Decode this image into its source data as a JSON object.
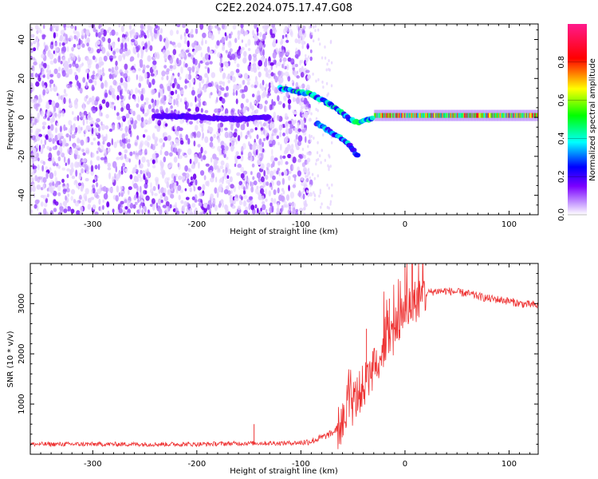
{
  "title": "C2E2.2024.075.17.47.G08",
  "chart_data": [
    {
      "type": "heatmap",
      "xlabel": "Height of straight line (km)",
      "ylabel": "Frequency (Hz)",
      "xlim": [
        -360,
        128
      ],
      "ylim": [
        -50,
        48
      ],
      "xticks": [
        -300,
        -200,
        -100,
        0,
        100
      ],
      "xtick_labels": [
        "-300",
        "-200",
        "-100",
        "0",
        "100"
      ],
      "yticks": [
        -40,
        -20,
        0,
        20,
        40
      ],
      "ytick_labels": [
        "-40",
        "-20",
        "0",
        "20",
        "40"
      ],
      "colorbar": {
        "label": "Normalized spectral amplitude",
        "range": [
          0,
          1
        ],
        "ticks": [
          0.0,
          0.2,
          0.4,
          0.6,
          0.8
        ],
        "tick_labels": [
          "0.0",
          "0.2",
          "0.4",
          "0.6",
          "0.8"
        ],
        "colormap": [
          "#ffffff",
          "#c79cff",
          "#7b00ff",
          "#0000ff",
          "#00ffff",
          "#00ff00",
          "#ffff00",
          "#ff0000",
          "#ff0080"
        ]
      },
      "features": [
        {
          "name": "carrier-line",
          "x": [
            -30,
            128
          ],
          "y": [
            1,
            1
          ],
          "amplitude": 0.7
        },
        {
          "name": "upper-streak",
          "x": [
            -120,
            -90,
            -70,
            -55,
            -45,
            -30
          ],
          "y": [
            15,
            12,
            6,
            0,
            -3,
            0
          ],
          "amplitude": 0.35
        },
        {
          "name": "lower-streak",
          "x": [
            -85,
            -70,
            -55,
            -45
          ],
          "y": [
            -3,
            -8,
            -13,
            -20
          ],
          "amplitude": 0.3
        },
        {
          "name": "mid-band",
          "x": [
            -240,
            -190,
            -160,
            -130
          ],
          "y": [
            1,
            0,
            -1,
            0
          ],
          "amplitude": 0.15
        }
      ],
      "noise_region_x": [
        -360,
        -100
      ]
    },
    {
      "type": "line",
      "xlabel": "Height of straight line (km)",
      "ylabel": "SNR (10 * v/v)",
      "xlim": [
        -360,
        128
      ],
      "ylim": [
        0,
        3800
      ],
      "xticks": [
        -300,
        -200,
        -100,
        0,
        100
      ],
      "xtick_labels": [
        "-300",
        "-200",
        "-100",
        "0",
        "100"
      ],
      "yticks": [
        1000,
        2000,
        3000
      ],
      "ytick_labels": [
        "1000",
        "2000",
        "3000"
      ],
      "color": "#ee3333",
      "series": [
        {
          "x": [
            -360,
            -300,
            -250,
            -200,
            -150,
            -120,
            -100,
            -90,
            -80,
            -70,
            -60,
            -55,
            -50,
            -45,
            -40,
            -35,
            -30,
            -25,
            -20,
            -15,
            -10,
            -5,
            0,
            5,
            10,
            15,
            20,
            25,
            30,
            40,
            50,
            60,
            70,
            80,
            90,
            100,
            110,
            120,
            128
          ],
          "values": [
            200,
            200,
            200,
            200,
            220,
            220,
            230,
            260,
            330,
            420,
            600,
            850,
            1000,
            1200,
            1350,
            1500,
            1700,
            1950,
            2150,
            2300,
            2500,
            2700,
            2850,
            2950,
            3050,
            3150,
            3200,
            3230,
            3250,
            3250,
            3230,
            3200,
            3150,
            3100,
            3080,
            3050,
            3000,
            2980,
            2960
          ]
        }
      ],
      "spikes": [
        {
          "x": 0,
          "value": 3750
        },
        {
          "x": -37,
          "value": 2500
        },
        {
          "x": -20,
          "value": 2700
        },
        {
          "x": -15,
          "value": 3100
        },
        {
          "x": -145,
          "value": 600
        }
      ]
    }
  ]
}
